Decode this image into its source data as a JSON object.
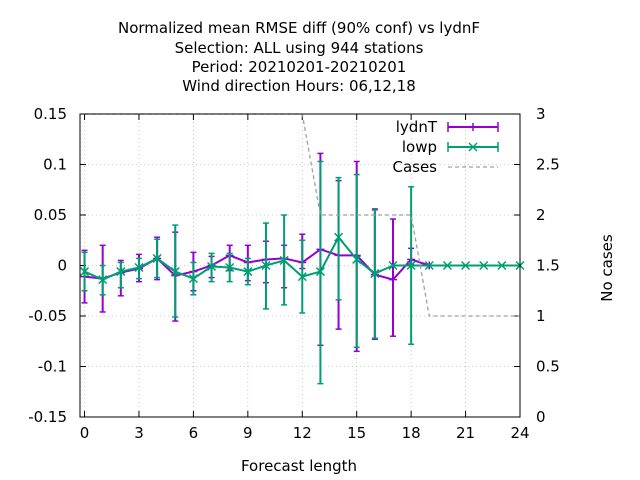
{
  "chart_data": {
    "type": "line",
    "title_lines": [
      "Normalized mean RMSE diff (90% conf) vs lydnF",
      "Selection: ALL using   944 stations",
      "Period: 20210201-20210201",
      "Wind direction   Hours:  06,12,18"
    ],
    "xlabel": "Forecast length",
    "y2label": "No cases",
    "xlim": [
      -0.25,
      24
    ],
    "ylim": [
      -0.15,
      0.15
    ],
    "y2lim": [
      0,
      3
    ],
    "x_ticks": [
      0,
      3,
      6,
      9,
      12,
      15,
      18,
      21,
      24
    ],
    "y_ticks": [
      -0.15,
      -0.1,
      -0.05,
      0,
      0.05,
      0.1,
      0.15
    ],
    "y_tick_labels": [
      "-0.15",
      "-0.1",
      "-0.05",
      "0",
      "0.05",
      "0.1",
      "0.15"
    ],
    "y2_ticks": [
      0,
      0.5,
      1,
      1.5,
      2,
      2.5,
      3
    ],
    "y2_tick_labels": [
      "0",
      "0.5",
      "1",
      "1.5",
      "2",
      "2.5",
      "3"
    ],
    "legend_position": "top-right",
    "series": [
      {
        "name": "lydnT",
        "color": "#9400d3",
        "marker": "plus",
        "x": [
          0,
          1,
          2,
          3,
          4,
          5,
          6,
          7,
          8,
          9,
          10,
          11,
          12,
          13,
          14,
          15,
          16,
          17,
          18,
          19
        ],
        "y": [
          -0.011,
          -0.013,
          -0.007,
          -0.003,
          0.007,
          -0.01,
          -0.006,
          0,
          0.01,
          0.003,
          0.006,
          0.007,
          0.003,
          0.016,
          0.01,
          0.01,
          -0.009,
          -0.014,
          0.006,
          0
        ],
        "lo": [
          -0.037,
          -0.046,
          -0.03,
          -0.016,
          -0.014,
          -0.055,
          -0.025,
          -0.012,
          -0.005,
          -0.015,
          -0.017,
          -0.022,
          -0.003,
          -0.079,
          -0.063,
          -0.085,
          -0.073,
          -0.07,
          0.001,
          0
        ],
        "hi": [
          0.015,
          0.02,
          0.005,
          0.011,
          0.028,
          0.033,
          0.013,
          0.009,
          0.02,
          0.02,
          0.024,
          0.02,
          0.031,
          0.111,
          0.084,
          0.103,
          0.056,
          0.046,
          0.017,
          0
        ]
      },
      {
        "name": "lowp",
        "color": "#009e73",
        "marker": "cross",
        "x": [
          0,
          1,
          2,
          3,
          4,
          5,
          6,
          7,
          8,
          9,
          10,
          11,
          12,
          13,
          14,
          15,
          16,
          17,
          18,
          19,
          20,
          21,
          22,
          23,
          24
        ],
        "y": [
          -0.006,
          -0.014,
          -0.006,
          -0.002,
          0.007,
          -0.006,
          -0.013,
          -0.001,
          -0.002,
          -0.006,
          0,
          0.005,
          -0.011,
          -0.006,
          0.028,
          0.006,
          -0.008,
          0,
          0,
          0,
          0,
          0,
          0,
          0,
          0
        ],
        "lo": [
          -0.025,
          -0.029,
          -0.022,
          -0.013,
          -0.012,
          -0.051,
          -0.029,
          -0.016,
          -0.016,
          -0.019,
          -0.043,
          -0.039,
          -0.047,
          -0.117,
          -0.034,
          -0.081,
          -0.072,
          0,
          -0.078,
          0,
          0,
          0,
          0,
          0,
          0
        ],
        "hi": [
          0.013,
          0,
          0.003,
          0.007,
          0.026,
          0.04,
          0.003,
          0.012,
          0.012,
          0.007,
          0.042,
          0.05,
          0.025,
          0.103,
          0.087,
          0.09,
          0.055,
          0,
          0.078,
          0,
          0,
          0,
          0,
          0,
          0
        ]
      },
      {
        "name": "Cases",
        "color": "#a0a0a0",
        "axis": "y2",
        "style": "dashed",
        "x": [
          0,
          12,
          13,
          18,
          19,
          24
        ],
        "y": [
          3,
          3,
          2,
          2,
          1,
          1
        ]
      }
    ]
  }
}
